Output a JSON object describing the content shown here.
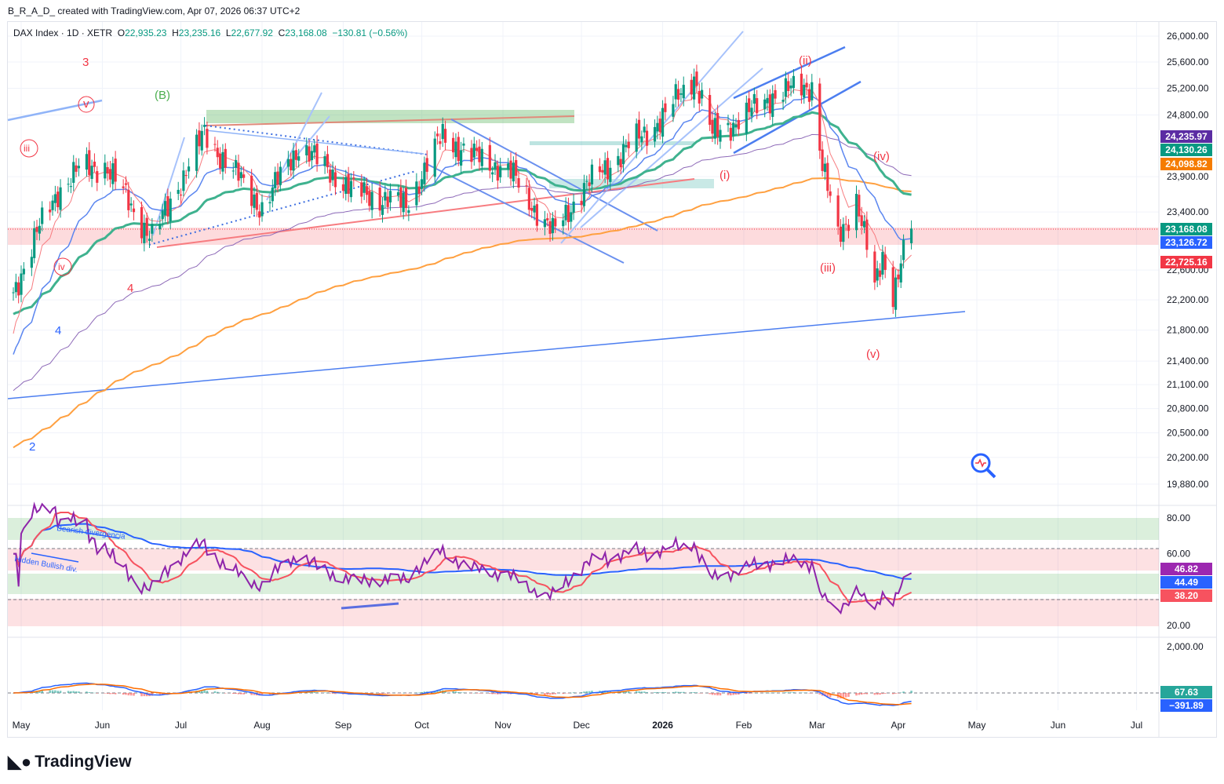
{
  "credit": "B_R_A_D_ created with TradingView.com, Apr 07, 2026 06:37 UTC+2",
  "legend": {
    "symbol": "DAX Index · 1D · XETR",
    "o_label": "O",
    "o": "22,935.23",
    "h_label": "H",
    "h": "23,235.16",
    "l_label": "L",
    "l": "22,677.92",
    "c_label": "C",
    "c": "23,168.08",
    "change": "−130.81 (−0.56%)"
  },
  "price_badges": [
    {
      "text": "24,235.97",
      "color": "#5b2ca3",
      "value": 24235.97
    },
    {
      "text": "24,130.26",
      "color": "#089981",
      "value": 24130.26
    },
    {
      "text": "24,098.82",
      "color": "#f57c00",
      "value": 24098.82
    },
    {
      "text": "23,168.08",
      "color": "#089981",
      "value": 23168.08
    },
    {
      "text": "23,126.72",
      "color": "#2962ff",
      "value": 23126.72
    },
    {
      "text": "22,725.16",
      "color": "#f23645",
      "value": 22725.16
    }
  ],
  "rsi_badges": [
    {
      "text": "46.82",
      "color": "#9c27b0"
    },
    {
      "text": "44.49",
      "color": "#2962ff"
    },
    {
      "text": "38.20",
      "color": "#f7525f"
    }
  ],
  "macd_badges": [
    {
      "text": "67.63",
      "color": "#26a69a"
    },
    {
      "text": "−391.89",
      "color": "#2962ff"
    }
  ],
  "wave_labels": [
    {
      "text": "3",
      "color": "#f23645"
    },
    {
      "text": "v",
      "color": "#f23645"
    },
    {
      "text": "(B)",
      "color": "#4caf50"
    },
    {
      "text": "iii",
      "color": "#f23645"
    },
    {
      "text": "iv",
      "color": "#f23645"
    },
    {
      "text": "4",
      "color": "#f23645"
    },
    {
      "text": "4",
      "color": "#2962ff"
    },
    {
      "text": "2",
      "color": "#2962ff"
    },
    {
      "text": "(ii)",
      "color": "#f23645"
    },
    {
      "text": "(i)",
      "color": "#f23645"
    },
    {
      "text": "(iv)",
      "color": "#f23645"
    },
    {
      "text": "(iii)",
      "color": "#f23645"
    },
    {
      "text": "(v)",
      "color": "#f23645"
    }
  ],
  "rsi_annotations": {
    "bearish": "Bearish divergencia",
    "hidden": "Hidden Bullish div."
  },
  "logo": "TradingView",
  "chart_data": {
    "type": "candlestick",
    "title": "DAX Index · 1D · XETR",
    "scale": "log",
    "price_ticks": [
      {
        "v": 26000,
        "t": "26,000.00"
      },
      {
        "v": 25600,
        "t": "25,600.00"
      },
      {
        "v": 25200,
        "t": "25,200.00"
      },
      {
        "v": 24800,
        "t": "24,800.00"
      },
      {
        "v": 23900,
        "t": "23,900.00"
      },
      {
        "v": 23400,
        "t": "23,400.00"
      },
      {
        "v": 22600,
        "t": "22,600.00"
      },
      {
        "v": 22200,
        "t": "22,200.00"
      },
      {
        "v": 21800,
        "t": "21,800.00"
      },
      {
        "v": 21400,
        "t": "21,400.00"
      },
      {
        "v": 21100,
        "t": "21,100.00"
      },
      {
        "v": 20800,
        "t": "20,800.00"
      },
      {
        "v": 20500,
        "t": "20,500.00"
      },
      {
        "v": 20200,
        "t": "20,200.00"
      },
      {
        "v": 19880,
        "t": "19,880.00"
      }
    ],
    "time_ticks": [
      {
        "d": "2025-05-01",
        "t": "May"
      },
      {
        "d": "2025-06-01",
        "t": "Jun"
      },
      {
        "d": "2025-07-01",
        "t": "Jul"
      },
      {
        "d": "2025-08-01",
        "t": "Aug"
      },
      {
        "d": "2025-09-01",
        "t": "Sep"
      },
      {
        "d": "2025-10-01",
        "t": "Oct"
      },
      {
        "d": "2025-11-01",
        "t": "Nov"
      },
      {
        "d": "2025-12-01",
        "t": "Dec"
      },
      {
        "d": "2026-01-01",
        "t": "2026"
      },
      {
        "d": "2026-02-01",
        "t": "Feb"
      },
      {
        "d": "2026-03-01",
        "t": "Mar"
      },
      {
        "d": "2026-04-01",
        "t": "Apr"
      },
      {
        "d": "2026-05-01",
        "t": "May"
      },
      {
        "d": "2026-06-01",
        "t": "Jun"
      },
      {
        "d": "2026-07-01",
        "t": "Jul"
      }
    ],
    "rsi_ticks": [
      {
        "v": 80,
        "t": "80.00"
      },
      {
        "v": 60,
        "t": "60.00"
      },
      {
        "v": 20,
        "t": "20.00"
      }
    ],
    "macd_ticks": [
      {
        "v": 2000,
        "t": "2,000.00"
      }
    ],
    "close_keypoints": [
      [
        "2025-04-28",
        22300
      ],
      [
        "2025-05-07",
        23100
      ],
      [
        "2025-05-15",
        23700
      ],
      [
        "2025-05-23",
        24000
      ],
      [
        "2025-06-02",
        24070
      ],
      [
        "2025-06-20",
        23030
      ],
      [
        "2025-07-03",
        24000
      ],
      [
        "2025-07-10",
        24520
      ],
      [
        "2025-08-01",
        23450
      ],
      [
        "2025-08-15",
        24350
      ],
      [
        "2025-09-05",
        23700
      ],
      [
        "2025-09-25",
        23500
      ],
      [
        "2025-10-09",
        24500
      ],
      [
        "2025-10-20",
        24200
      ],
      [
        "2025-11-03",
        24000
      ],
      [
        "2025-11-20",
        23100
      ],
      [
        "2025-12-01",
        23700
      ],
      [
        "2025-12-15",
        24200
      ],
      [
        "2026-01-02",
        24800
      ],
      [
        "2026-01-13",
        25400
      ],
      [
        "2026-01-20",
        24500
      ],
      [
        "2026-02-02",
        24800
      ],
      [
        "2026-02-12",
        25100
      ],
      [
        "2026-02-27",
        25250
      ],
      [
        "2026-03-03",
        24060
      ],
      [
        "2026-03-09",
        23030
      ],
      [
        "2026-03-16",
        23600
      ],
      [
        "2026-03-20",
        22900
      ],
      [
        "2026-03-23",
        22330
      ],
      [
        "2026-03-26",
        22800
      ],
      [
        "2026-03-30",
        22300
      ],
      [
        "2026-04-02",
        22700
      ],
      [
        "2026-04-06",
        23168
      ]
    ]
  }
}
